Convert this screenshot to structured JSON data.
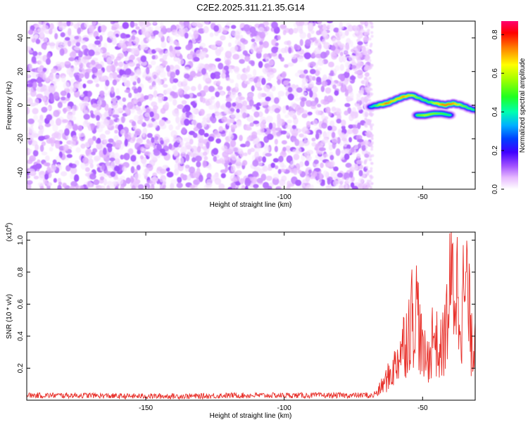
{
  "title": "C2E2.2025.311.21.35.G14",
  "chart_data": [
    {
      "type": "heatmap",
      "xlabel": "Height of straight line (km)",
      "ylabel": "Frequency (Hz)",
      "xlim": [
        -193,
        -31
      ],
      "ylim": [
        -50,
        50
      ],
      "xticks": [
        -150,
        -100,
        -50
      ],
      "yticks": [
        -40,
        -20,
        0,
        20,
        40
      ],
      "colorbar": {
        "label": "Normalized spectral amplitude",
        "range": [
          0,
          0.87
        ],
        "ticks": [
          0.0,
          0.2,
          0.4,
          0.6,
          0.8
        ],
        "colors": [
          "#ffffff",
          "#f4d0ff",
          "#a050ff",
          "#5000ff",
          "#0050ff",
          "#00c8ff",
          "#00ff80",
          "#80ff00",
          "#ffff00",
          "#ff8000",
          "#ff0000",
          "#ff0080"
        ]
      },
      "noise_region": {
        "x_range": [
          -193,
          -69
        ],
        "peak_amplitude": 0.12
      },
      "signal_trace": {
        "x": [
          -69,
          -66,
          -63,
          -60,
          -57,
          -54,
          -51,
          -48,
          -45,
          -42,
          -39,
          -36,
          -33,
          -31
        ],
        "frequency": [
          -1,
          0,
          1,
          3,
          5,
          6,
          4,
          2,
          1,
          0,
          1,
          0,
          -2,
          -3
        ],
        "peak_amplitude": [
          0.35,
          0.6,
          0.85,
          0.7,
          0.8,
          0.65,
          0.55,
          0.5,
          0.7,
          0.85,
          0.8,
          0.6,
          0.5,
          0.45
        ]
      },
      "secondary_trace": {
        "x": [
          -52,
          -49,
          -46,
          -43,
          -40
        ],
        "frequency": [
          -6,
          -6,
          -5,
          -5,
          -6
        ],
        "peak_amplitude": [
          0.5,
          0.6,
          0.55,
          0.5,
          0.45
        ]
      }
    },
    {
      "type": "line",
      "xlabel": "Height of straight line (km)",
      "ylabel": "SNR (10 * v/v)",
      "y_multiplier": "(x10^4)",
      "xlim": [
        -193,
        -31
      ],
      "ylim": [
        0,
        1.05
      ],
      "xticks": [
        -150,
        -100,
        -50
      ],
      "yticks": [
        0.2,
        0.4,
        0.6,
        0.8,
        1.0
      ],
      "color": "#e8302a",
      "series": [
        {
          "x": [
            -193,
            -180,
            -170,
            -160,
            -150,
            -140,
            -130,
            -120,
            -110,
            -100,
            -90,
            -80,
            -72,
            -68,
            -66,
            -64,
            -62,
            -60,
            -58,
            -56,
            -54,
            -52,
            -50,
            -48,
            -46,
            -44,
            -42,
            -40,
            -38,
            -36,
            -34,
            -32,
            -31
          ],
          "values": [
            0.03,
            0.03,
            0.03,
            0.025,
            0.025,
            0.025,
            0.025,
            0.03,
            0.03,
            0.03,
            0.03,
            0.03,
            0.03,
            0.04,
            0.08,
            0.15,
            0.22,
            0.3,
            0.45,
            0.55,
            0.75,
            0.83,
            0.4,
            0.35,
            0.62,
            0.4,
            0.55,
            0.98,
            1.05,
            0.85,
            1.01,
            0.4,
            0.75
          ]
        }
      ]
    }
  ]
}
